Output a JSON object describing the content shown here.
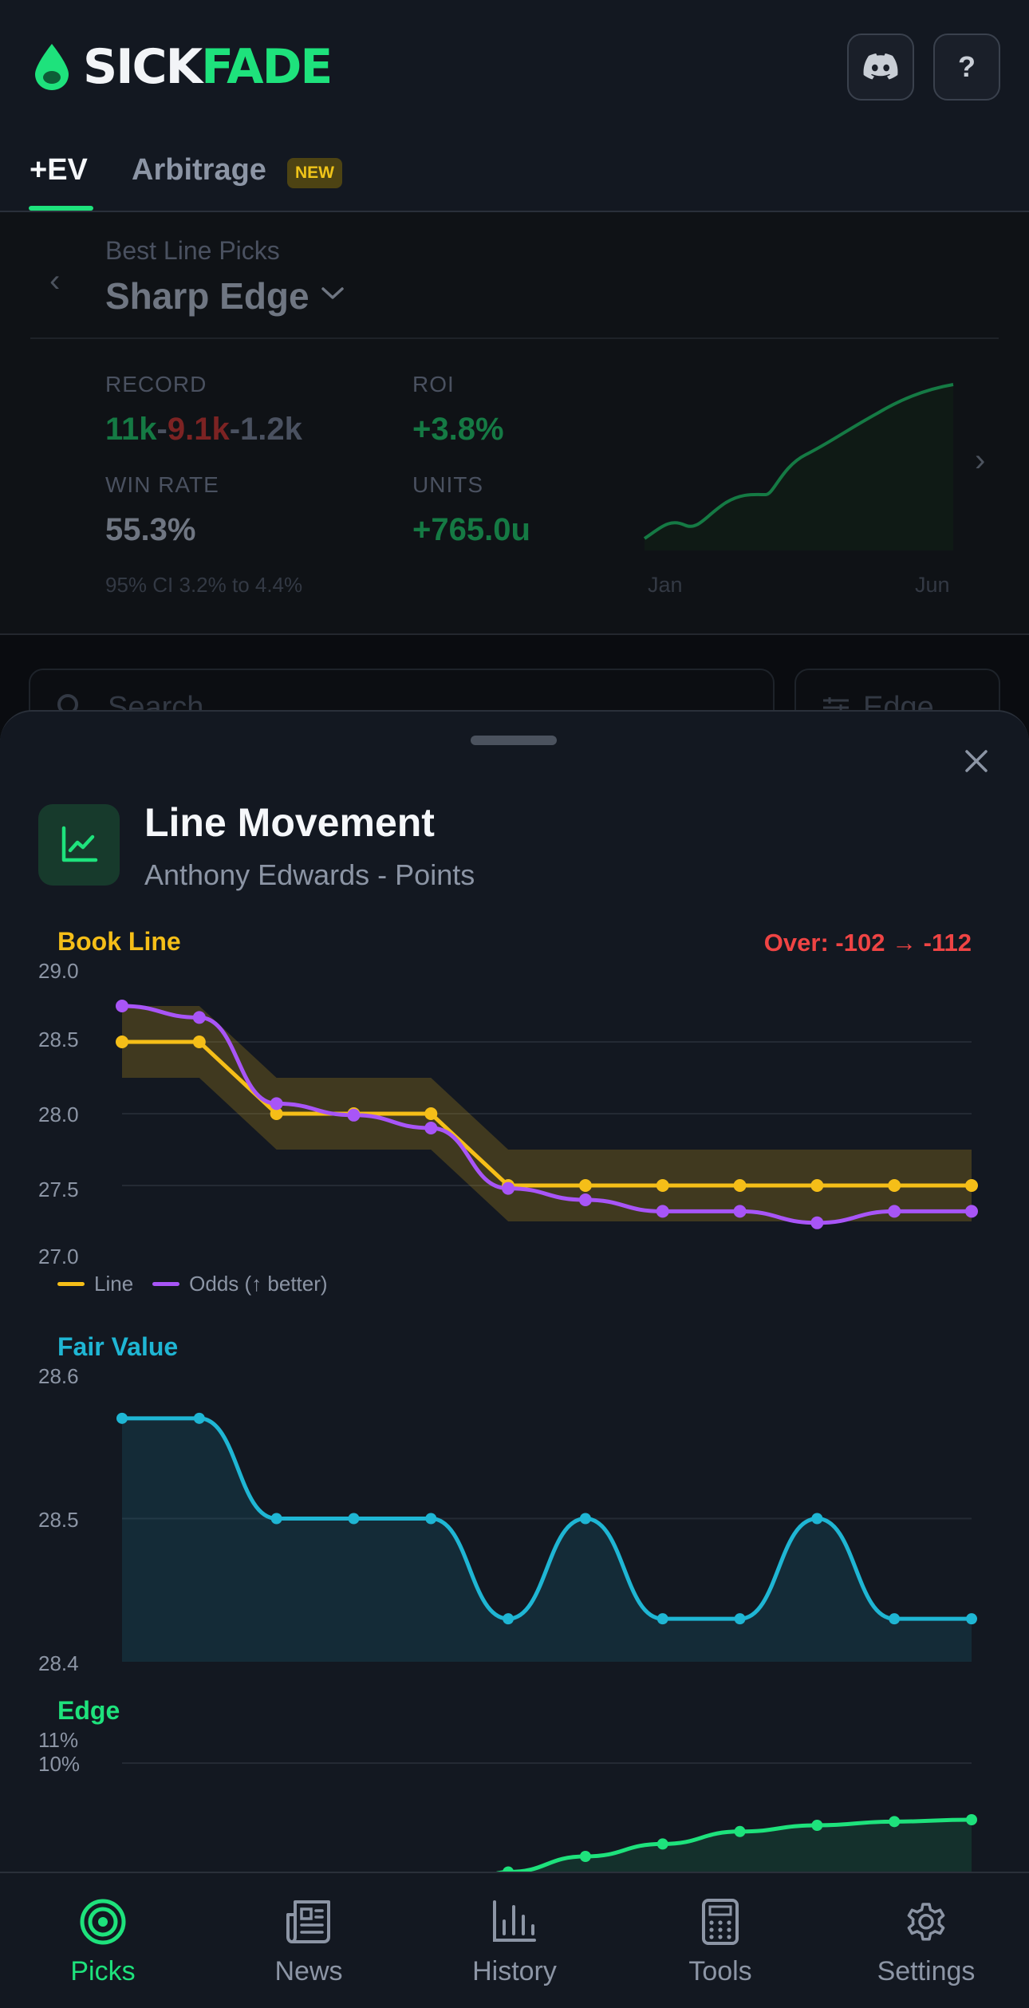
{
  "brand": {
    "part1": "SICK",
    "part2": "FADE"
  },
  "header": {
    "help_label": "?"
  },
  "tabs": [
    {
      "label": "+EV",
      "active": true
    },
    {
      "label": "Arbitrage",
      "badge": "NEW"
    }
  ],
  "strategy": {
    "label": "Best Line Picks",
    "name": "Sharp Edge",
    "stats": {
      "record_label": "RECORD",
      "record_wins": "11k",
      "record_losses": "9.1k",
      "record_pushes": "1.2k",
      "roi_label": "ROI",
      "roi_value": "+3.8%",
      "winrate_label": "WIN RATE",
      "winrate_value": "55.3%",
      "units_label": "UNITS",
      "units_value": "+765.0u",
      "ci_text": "95% CI 3.2% to 4.4%"
    },
    "mini_chart": {
      "x_start": "Jan",
      "x_end": "Jun"
    }
  },
  "search": {
    "placeholder": "Search"
  },
  "filter": {
    "label": "Edge"
  },
  "sheet": {
    "title": "Line Movement",
    "subtitle": "Anthony Edwards - Points"
  },
  "chart_data": [
    {
      "type": "line",
      "title": "Book Line",
      "annotation": "Over: -102 → -112",
      "ylim": [
        27.0,
        29.0
      ],
      "yticks": [
        "29.0",
        "28.5",
        "28.0",
        "27.5",
        "27.0"
      ],
      "series": [
        {
          "name": "Line",
          "color": "#f5be18",
          "values": [
            28.5,
            28.5,
            28.0,
            28.0,
            28.0,
            27.5,
            27.5,
            27.5,
            27.5,
            27.5,
            27.5,
            27.5
          ]
        },
        {
          "name": "Odds (↑ better)",
          "color": "#a855f7",
          "values": [
            28.75,
            28.67,
            28.07,
            27.99,
            27.9,
            27.48,
            27.4,
            27.32,
            27.32,
            27.24,
            27.32,
            27.32
          ]
        }
      ],
      "band": {
        "color": "#f5be18",
        "lower": [
          28.25,
          28.25,
          27.75,
          27.75,
          27.75,
          27.25,
          27.25,
          27.25,
          27.25,
          27.25,
          27.25,
          27.25
        ],
        "upper": [
          28.75,
          28.75,
          28.25,
          28.25,
          28.25,
          27.75,
          27.75,
          27.75,
          27.75,
          27.75,
          27.75,
          27.75
        ]
      }
    },
    {
      "type": "area",
      "title": "Fair Value",
      "ylim": [
        28.4,
        28.6
      ],
      "yticks": [
        "28.6",
        "28.5",
        "28.4"
      ],
      "series": [
        {
          "color": "#1fb6d4",
          "values": [
            28.57,
            28.57,
            28.5,
            28.5,
            28.5,
            28.43,
            28.5,
            28.43,
            28.43,
            28.5,
            28.43,
            28.43
          ]
        }
      ]
    },
    {
      "type": "area",
      "title": "Edge",
      "yticks": [
        "11%",
        "10%"
      ],
      "series": [
        {
          "color": "#1ee27c",
          "values": [
            null,
            null,
            null,
            null,
            7.6,
            8.25,
            8.5,
            8.7,
            8.9,
            9.0,
            9.06,
            9.09
          ]
        }
      ]
    }
  ],
  "nav": [
    {
      "label": "Picks",
      "icon": "target-icon",
      "active": true
    },
    {
      "label": "News",
      "icon": "newspaper-icon"
    },
    {
      "label": "History",
      "icon": "bar-chart-icon"
    },
    {
      "label": "Tools",
      "icon": "calculator-icon"
    },
    {
      "label": "Settings",
      "icon": "gear-icon"
    }
  ],
  "colors": {
    "accent": "#1ee27c",
    "line": "#f5be18",
    "odds": "#a855f7",
    "fair": "#1fb6d4",
    "negative": "#ef4444"
  }
}
